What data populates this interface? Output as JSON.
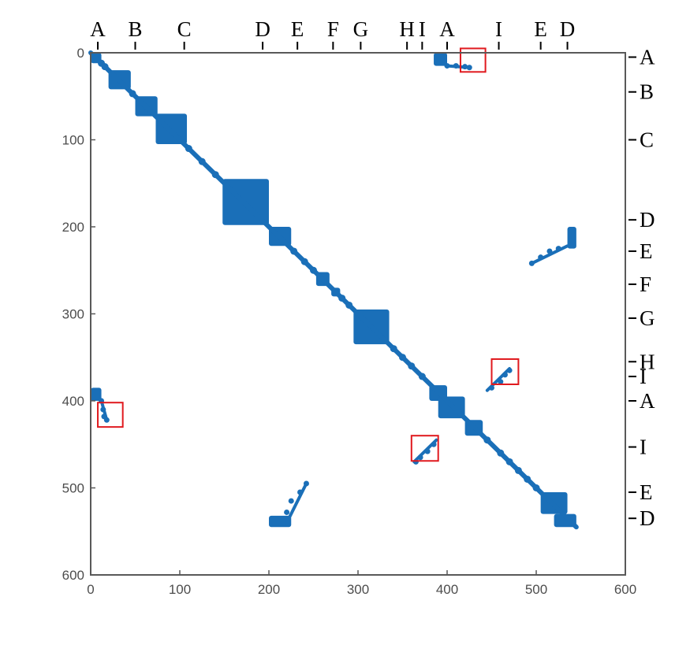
{
  "chart_data": {
    "type": "scatter",
    "title": "",
    "xlabel": "",
    "ylabel": "",
    "xlim": [
      0,
      600
    ],
    "ylim": [
      0,
      600
    ],
    "y_direction": "reversed",
    "grid": false,
    "legend": "none",
    "marker_color": "#1a6fb8",
    "highlight_color": "#e0191e",
    "x_ticks": [
      0,
      100,
      200,
      300,
      400,
      500,
      600
    ],
    "y_ticks": [
      0,
      100,
      200,
      300,
      400,
      500,
      600
    ],
    "top_segments": [
      {
        "label": "A",
        "x": 8
      },
      {
        "label": "B",
        "x": 50
      },
      {
        "label": "C",
        "x": 105
      },
      {
        "label": "D",
        "x": 193
      },
      {
        "label": "E",
        "x": 232
      },
      {
        "label": "F",
        "x": 272
      },
      {
        "label": "G",
        "x": 303
      },
      {
        "label": "H",
        "x": 355
      },
      {
        "label": "I",
        "x": 372
      },
      {
        "label": "A",
        "x": 400
      },
      {
        "label": "I",
        "x": 458
      },
      {
        "label": "E",
        "x": 505
      },
      {
        "label": "D",
        "x": 535
      }
    ],
    "right_segments": [
      {
        "label": "A",
        "y": 5
      },
      {
        "label": "B",
        "y": 45
      },
      {
        "label": "C",
        "y": 100
      },
      {
        "label": "D",
        "y": 192
      },
      {
        "label": "E",
        "y": 228
      },
      {
        "label": "F",
        "y": 266
      },
      {
        "label": "G",
        "y": 305
      },
      {
        "label": "H",
        "y": 355
      },
      {
        "label": "I",
        "y": 372
      },
      {
        "label": "A",
        "y": 400
      },
      {
        "label": "I",
        "y": 453
      },
      {
        "label": "E",
        "y": 505
      },
      {
        "label": "D",
        "y": 535
      }
    ],
    "blocks": [
      {
        "x": [
          0,
          12
        ],
        "y": [
          0,
          12
        ]
      },
      {
        "x": [
          20,
          45
        ],
        "y": [
          20,
          42
        ]
      },
      {
        "x": [
          50,
          75
        ],
        "y": [
          50,
          73
        ]
      },
      {
        "x": [
          73,
          108
        ],
        "y": [
          70,
          105
        ]
      },
      {
        "x": [
          148,
          200
        ],
        "y": [
          145,
          198
        ]
      },
      {
        "x": [
          200,
          225
        ],
        "y": [
          200,
          222
        ]
      },
      {
        "x": [
          253,
          268
        ],
        "y": [
          252,
          268
        ]
      },
      {
        "x": [
          270,
          280
        ],
        "y": [
          270,
          280
        ]
      },
      {
        "x": [
          295,
          335
        ],
        "y": [
          295,
          335
        ]
      },
      {
        "x": [
          380,
          400
        ],
        "y": [
          382,
          400
        ]
      },
      {
        "x": [
          390,
          420
        ],
        "y": [
          395,
          420
        ]
      },
      {
        "x": [
          420,
          440
        ],
        "y": [
          422,
          440
        ]
      },
      {
        "x": [
          505,
          535
        ],
        "y": [
          505,
          530
        ]
      },
      {
        "x": [
          520,
          545
        ],
        "y": [
          530,
          545
        ]
      },
      {
        "x": [
          385,
          400
        ],
        "y": [
          0,
          15
        ]
      },
      {
        "x": [
          0,
          12
        ],
        "y": [
          385,
          400
        ]
      },
      {
        "x": [
          200,
          225
        ],
        "y": [
          532,
          545
        ]
      },
      {
        "x": [
          535,
          545
        ],
        "y": [
          200,
          225
        ]
      }
    ],
    "diagonal": [
      [
        12,
        12
      ],
      [
        16,
        16
      ],
      [
        47,
        47
      ],
      [
        110,
        110
      ],
      [
        125,
        125
      ],
      [
        140,
        140
      ],
      [
        228,
        228
      ],
      [
        240,
        240
      ],
      [
        250,
        250
      ],
      [
        282,
        282
      ],
      [
        290,
        290
      ],
      [
        340,
        340
      ],
      [
        350,
        350
      ],
      [
        360,
        360
      ],
      [
        372,
        372
      ],
      [
        445,
        445
      ],
      [
        460,
        460
      ],
      [
        470,
        470
      ],
      [
        480,
        480
      ],
      [
        490,
        490
      ],
      [
        500,
        500
      ]
    ],
    "offdiagonal": [
      [
        400,
        15
      ],
      [
        410,
        15
      ],
      [
        420,
        16
      ],
      [
        425,
        17
      ],
      [
        12,
        400
      ],
      [
        14,
        410
      ],
      [
        15,
        418
      ],
      [
        18,
        422
      ],
      [
        495,
        242
      ],
      [
        505,
        235
      ],
      [
        515,
        228
      ],
      [
        525,
        225
      ],
      [
        242,
        495
      ],
      [
        235,
        505
      ],
      [
        225,
        515
      ],
      [
        220,
        528
      ],
      [
        450,
        385
      ],
      [
        460,
        378
      ],
      [
        465,
        370
      ],
      [
        470,
        365
      ],
      [
        385,
        450
      ],
      [
        378,
        458
      ],
      [
        370,
        465
      ],
      [
        365,
        470
      ]
    ],
    "highlight_boxes": [
      {
        "x": [
          415,
          443
        ],
        "y": [
          -5,
          22
        ]
      },
      {
        "x": [
          8,
          36
        ],
        "y": [
          402,
          430
        ]
      },
      {
        "x": [
          450,
          480
        ],
        "y": [
          352,
          381
        ]
      },
      {
        "x": [
          360,
          390
        ],
        "y": [
          440,
          469
        ]
      }
    ]
  }
}
